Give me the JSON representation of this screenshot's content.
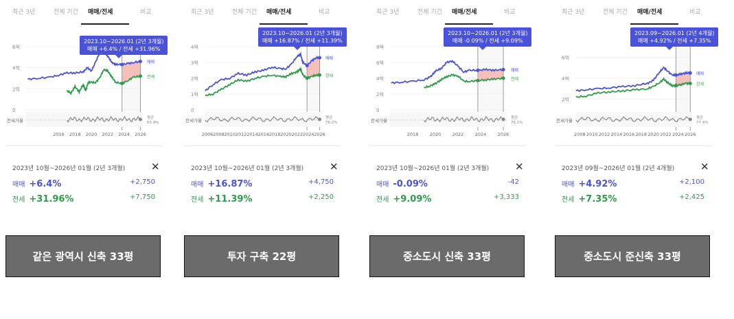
{
  "tabs": [
    "최근 3년",
    "전체 기간",
    "매매/전세",
    "비교"
  ],
  "active_tab": 2,
  "panels": [
    {
      "tooltip": {
        "line1": "2023.10~2026.01 (2년 3개월)",
        "line2": "매매 +6.4% / 전세 +31.96%"
      },
      "summary": {
        "period": "2023년 10월~2026년 01월 (2년 3개월)",
        "sale_label": "매매",
        "sale_pct": "+6.4%",
        "sale_amt": "+2,750",
        "jeonse_label": "전세",
        "jeonse_pct": "+31.96%",
        "jeonse_amt": "+7,750"
      },
      "caption": "같은 광역시 신축 33평"
    },
    {
      "tooltip": {
        "line1": "2023.10~2026.01 (2년 3개월)",
        "line2": "매매 +16.87% / 전세 +11.39%"
      },
      "summary": {
        "period": "2023년 10월~2026년 01월 (2년 3개월)",
        "sale_label": "매매",
        "sale_pct": "+16.87%",
        "sale_amt": "+4,750",
        "jeonse_label": "전세",
        "jeonse_pct": "+11.39%",
        "jeonse_amt": "+2,250"
      },
      "caption": "투자 구축 22평"
    },
    {
      "tooltip": {
        "line1": "2023.10~2026.01 (2년 3개월)",
        "line2": "매매 -0.09% / 전세 +9.09%"
      },
      "summary": {
        "period": "2023년 10월~2026년 01월 (2년 3개월)",
        "sale_label": "매매",
        "sale_pct": "-0.09%",
        "sale_amt": "-42",
        "jeonse_label": "전세",
        "jeonse_pct": "+9.09%",
        "jeonse_amt": "+3,333"
      },
      "caption": "중소도시 신축 33평"
    },
    {
      "tooltip": {
        "line1": "2023.09~2026.01 (2년 4개월)",
        "line2": "매매 +4.92% / 전세 +7.35%"
      },
      "summary": {
        "period": "2023년 09월~2026년 01월 (2년 4개월)",
        "sale_label": "매매",
        "sale_pct": "+4.92%",
        "sale_amt": "+2,100",
        "jeonse_label": "전세",
        "jeonse_pct": "+7.35%",
        "jeonse_amt": "+2,425"
      },
      "caption": "중소도시 준신축 33평"
    }
  ],
  "colors": {
    "sale": "#4a52d9",
    "jeonse": "#2e9b48",
    "ratio": "#888888",
    "fill": "#f4a8a0"
  },
  "chart_data": [
    {
      "type": "line",
      "x_ticks": [
        "2016",
        "2018",
        "2020",
        "2022",
        "2024",
        "2026"
      ],
      "y_ticks": [
        "0",
        "2억",
        "4억",
        "6억"
      ],
      "ylim": [
        0,
        6
      ],
      "ratio_label": "전세가율",
      "ratio_end_label": [
        "평균",
        "63.9%"
      ],
      "selection": [
        2023.75,
        2026.0
      ],
      "xlim": [
        2012.0,
        2026.3
      ],
      "series": [
        {
          "name": "매매",
          "x": [
            2012.2,
            2013.5,
            2015.0,
            2016.0,
            2017.0,
            2018.0,
            2019.0,
            2019.5,
            2020.0,
            2020.5,
            2021.0,
            2021.5,
            2022.0,
            2022.5,
            2023.0,
            2023.75,
            2024.5,
            2025.2,
            2026.0
          ],
          "values": [
            2.9,
            3.0,
            3.1,
            3.3,
            3.5,
            3.5,
            3.6,
            4.0,
            3.7,
            4.5,
            5.4,
            5.6,
            5.1,
            4.5,
            4.3,
            4.3,
            4.4,
            4.5,
            4.6
          ]
        },
        {
          "name": "전세",
          "x": [
            2017.0,
            2017.5,
            2018.0,
            2018.5,
            2019.0,
            2019.3,
            2019.6,
            2020.0,
            2020.5,
            2021.0,
            2021.5,
            2022.0,
            2022.5,
            2023.0,
            2023.75,
            2024.5,
            2025.2,
            2026.0
          ],
          "values": [
            1.8,
            1.6,
            2.2,
            1.7,
            2.4,
            1.8,
            2.6,
            2.6,
            2.6,
            3.0,
            3.8,
            3.7,
            3.1,
            2.6,
            2.5,
            2.8,
            3.1,
            3.2
          ]
        }
      ]
    },
    {
      "type": "line",
      "x_ticks": [
        "2006",
        "2008",
        "2010",
        "2012",
        "2014",
        "2016",
        "2018",
        "2020",
        "2022",
        "2024",
        "2026"
      ],
      "y_ticks": [
        "0",
        "1억",
        "2억",
        "3억",
        "4억"
      ],
      "ylim": [
        0,
        4
      ],
      "ratio_label": "전세가율",
      "ratio_end_label": [
        "평균",
        "76.2%"
      ],
      "selection": [
        2023.75,
        2026.0
      ],
      "xlim": [
        2005.5,
        2026.3
      ],
      "series": [
        {
          "name": "매매",
          "x": [
            2005.6,
            2007.0,
            2008.5,
            2010.0,
            2011.5,
            2013.0,
            2014.5,
            2016.0,
            2017.5,
            2019.0,
            2020.0,
            2021.0,
            2022.0,
            2022.6,
            2023.0,
            2023.75,
            2024.6,
            2025.3,
            2026.0
          ],
          "values": [
            1.2,
            1.6,
            1.9,
            2.0,
            2.3,
            2.2,
            2.4,
            2.5,
            2.7,
            2.6,
            2.6,
            2.9,
            3.4,
            3.5,
            3.0,
            2.8,
            3.1,
            3.3,
            3.3
          ]
        },
        {
          "name": "전세",
          "x": [
            2005.6,
            2007.0,
            2008.5,
            2010.0,
            2011.5,
            2013.0,
            2014.5,
            2016.0,
            2017.5,
            2019.0,
            2020.0,
            2021.0,
            2022.0,
            2022.6,
            2023.0,
            2023.75,
            2024.6,
            2025.3,
            2026.0
          ],
          "values": [
            0.9,
            1.0,
            1.3,
            1.6,
            1.9,
            1.8,
            2.0,
            2.1,
            2.2,
            2.1,
            2.1,
            2.3,
            2.4,
            2.6,
            2.2,
            2.0,
            2.1,
            2.2,
            2.2
          ]
        }
      ]
    },
    {
      "type": "line",
      "x_ticks": [
        "2018",
        "2020",
        "2022",
        "2024",
        "2026"
      ],
      "y_ticks": [
        "0",
        "2억",
        "4억",
        "6억",
        "8억"
      ],
      "ylim": [
        0,
        8
      ],
      "ratio_label": "전세가율",
      "ratio_end_label": [
        "평균",
        "76.1%"
      ],
      "selection": [
        2023.75,
        2026.0
      ],
      "xlim": [
        2016.0,
        2026.3
      ],
      "series": [
        {
          "name": "매매",
          "x": [
            2016.1,
            2017.0,
            2018.0,
            2019.0,
            2019.6,
            2020.0,
            2020.5,
            2021.0,
            2021.5,
            2022.0,
            2022.5,
            2023.0,
            2023.75,
            2024.5,
            2025.2,
            2026.0
          ],
          "values": [
            3.4,
            3.5,
            3.6,
            3.8,
            4.2,
            4.9,
            5.2,
            6.0,
            6.2,
            5.5,
            4.8,
            5.0,
            5.0,
            5.1,
            5.0,
            5.1
          ]
        },
        {
          "name": "전세",
          "x": [
            2019.0,
            2019.5,
            2020.0,
            2020.5,
            2021.0,
            2021.5,
            2022.0,
            2022.5,
            2023.0,
            2023.75,
            2024.5,
            2025.2,
            2026.0
          ],
          "values": [
            2.8,
            3.0,
            3.3,
            3.8,
            4.2,
            4.4,
            4.3,
            3.6,
            3.6,
            3.7,
            3.8,
            3.9,
            4.0
          ]
        }
      ]
    },
    {
      "type": "line",
      "x_ticks": [
        "2008",
        "2010",
        "2012",
        "2014",
        "2016",
        "2018",
        "2020",
        "2022",
        "2024",
        "2026"
      ],
      "y_ticks": [
        "2억",
        "4억",
        "6억"
      ],
      "ylim": [
        1,
        7
      ],
      "ratio_label": "전세가율",
      "ratio_end_label": [
        "평균",
        "77.4%"
      ],
      "selection": [
        2023.67,
        2026.0
      ],
      "xlim": [
        2007.3,
        2026.3
      ],
      "series": [
        {
          "name": "매매",
          "x": [
            2007.4,
            2009.0,
            2011.0,
            2013.0,
            2015.0,
            2017.0,
            2019.0,
            2020.0,
            2021.0,
            2021.7,
            2022.3,
            2023.0,
            2023.67,
            2024.5,
            2025.3,
            2026.0
          ],
          "values": [
            2.8,
            2.9,
            3.0,
            3.1,
            3.2,
            3.3,
            3.5,
            3.8,
            4.6,
            5.0,
            4.7,
            4.3,
            4.3,
            4.4,
            4.5,
            4.5
          ]
        },
        {
          "name": "전세",
          "x": [
            2007.4,
            2009.0,
            2011.0,
            2013.0,
            2015.0,
            2017.0,
            2019.0,
            2020.0,
            2021.0,
            2021.7,
            2022.3,
            2023.0,
            2023.67,
            2024.5,
            2025.3,
            2026.0
          ],
          "values": [
            2.2,
            2.3,
            2.6,
            2.7,
            2.8,
            2.9,
            3.0,
            3.2,
            3.6,
            3.9,
            3.6,
            3.3,
            3.3,
            3.4,
            3.5,
            3.5
          ]
        }
      ]
    }
  ]
}
